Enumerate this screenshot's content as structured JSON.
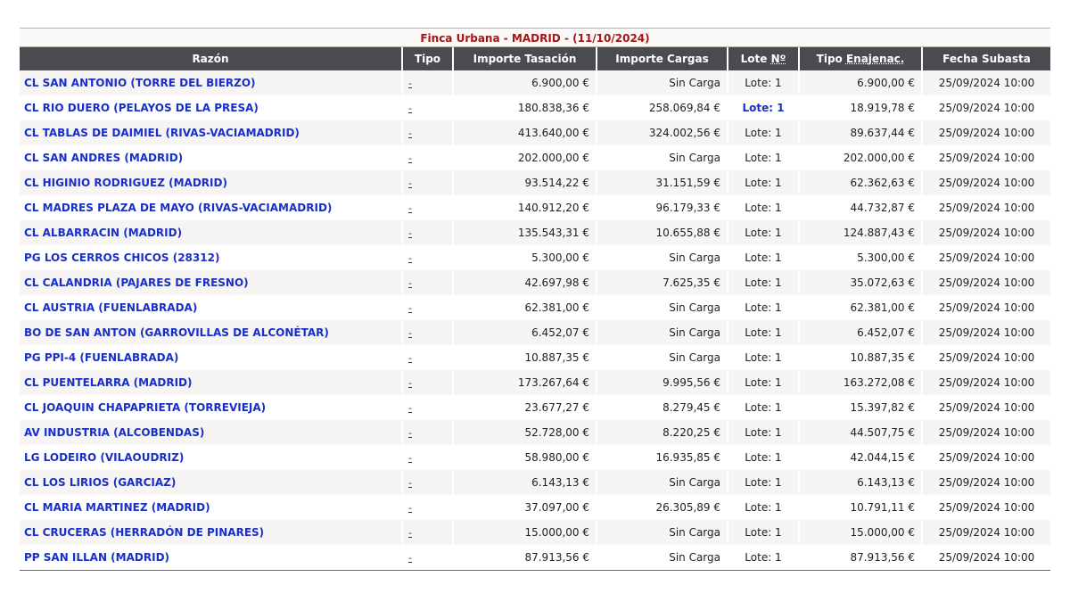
{
  "caption": "Finca Urbana - MADRID - (11/10/2024)",
  "headers": {
    "razon": "Razón",
    "tipo": "Tipo",
    "importe_tasacion": "Importe Tasación",
    "importe_cargas": "Importe Cargas",
    "lote_prefix": "Lote ",
    "lote_abbr": "Nº",
    "tipo_enajenac_prefix": "Tipo ",
    "tipo_enajenac_abbr": "Enajenac.",
    "fecha_subasta": "Fecha Subasta"
  },
  "rows": [
    {
      "razon": "CL SAN ANTONIO (TORRE DEL BIERZO)",
      "tipo": "-",
      "tasacion": "6.900,00 €",
      "cargas": "Sin Carga",
      "lote": "Lote: 1",
      "enajenac": "6.900,00 €",
      "fecha": "25/09/2024 10:00"
    },
    {
      "razon": "CL RIO DUERO (PELAYOS DE LA PRESA)",
      "tipo": "-",
      "tasacion": "180.838,36 €",
      "cargas": "258.069,84 €",
      "lote": "Lote: 1",
      "enajenac": "18.919,78 €",
      "fecha": "25/09/2024 10:00"
    },
    {
      "razon": "CL TABLAS DE DAIMIEL (RIVAS-VACIAMADRID)",
      "tipo": "-",
      "tasacion": "413.640,00 €",
      "cargas": "324.002,56 €",
      "lote": "Lote: 1",
      "enajenac": "89.637,44 €",
      "fecha": "25/09/2024 10:00"
    },
    {
      "razon": "CL SAN ANDRES (MADRID)",
      "tipo": "-",
      "tasacion": "202.000,00 €",
      "cargas": "Sin Carga",
      "lote": "Lote: 1",
      "enajenac": "202.000,00 €",
      "fecha": "25/09/2024 10:00"
    },
    {
      "razon": "CL HIGINIO RODRIGUEZ (MADRID)",
      "tipo": "-",
      "tasacion": "93.514,22 €",
      "cargas": "31.151,59 €",
      "lote": "Lote: 1",
      "enajenac": "62.362,63 €",
      "fecha": "25/09/2024 10:00"
    },
    {
      "razon": "CL MADRES PLAZA DE MAYO (RIVAS-VACIAMADRID)",
      "tipo": "-",
      "tasacion": "140.912,20 €",
      "cargas": "96.179,33 €",
      "lote": "Lote: 1",
      "enajenac": "44.732,87 €",
      "fecha": "25/09/2024 10:00"
    },
    {
      "razon": "CL ALBARRACIN (MADRID)",
      "tipo": "-",
      "tasacion": "135.543,31 €",
      "cargas": "10.655,88 €",
      "lote": "Lote: 1",
      "enajenac": "124.887,43 €",
      "fecha": "25/09/2024 10:00"
    },
    {
      "razon": "PG LOS CERROS CHICOS (28312)",
      "tipo": "-",
      "tasacion": "5.300,00 €",
      "cargas": "Sin Carga",
      "lote": "Lote: 1",
      "enajenac": "5.300,00 €",
      "fecha": "25/09/2024 10:00"
    },
    {
      "razon": "CL CALANDRIA (PAJARES DE FRESNO)",
      "tipo": "-",
      "tasacion": "42.697,98 €",
      "cargas": "7.625,35 €",
      "lote": "Lote: 1",
      "enajenac": "35.072,63 €",
      "fecha": "25/09/2024 10:00"
    },
    {
      "razon": "CL AUSTRIA (FUENLABRADA)",
      "tipo": "-",
      "tasacion": "62.381,00 €",
      "cargas": "Sin Carga",
      "lote": "Lote: 1",
      "enajenac": "62.381,00 €",
      "fecha": "25/09/2024 10:00"
    },
    {
      "razon": "BO DE SAN ANTON (GARROVILLAS DE ALCONÉTAR)",
      "tipo": "-",
      "tasacion": "6.452,07 €",
      "cargas": "Sin Carga",
      "lote": "Lote: 1",
      "enajenac": "6.452,07 €",
      "fecha": "25/09/2024 10:00"
    },
    {
      "razon": "PG PPI-4 (FUENLABRADA)",
      "tipo": "-",
      "tasacion": "10.887,35 €",
      "cargas": "Sin Carga",
      "lote": "Lote: 1",
      "enajenac": "10.887,35 €",
      "fecha": "25/09/2024 10:00"
    },
    {
      "razon": "CL PUENTELARRA (MADRID)",
      "tipo": "-",
      "tasacion": "173.267,64 €",
      "cargas": "9.995,56 €",
      "lote": "Lote: 1",
      "enajenac": "163.272,08 €",
      "fecha": "25/09/2024 10:00"
    },
    {
      "razon": "CL JOAQUIN CHAPAPRIETA (TORREVIEJA)",
      "tipo": "-",
      "tasacion": "23.677,27 €",
      "cargas": "8.279,45 €",
      "lote": "Lote: 1",
      "enajenac": "15.397,82 €",
      "fecha": "25/09/2024 10:00"
    },
    {
      "razon": "AV INDUSTRIA (ALCOBENDAS)",
      "tipo": "-",
      "tasacion": "52.728,00 €",
      "cargas": "8.220,25 €",
      "lote": "Lote: 1",
      "enajenac": "44.507,75 €",
      "fecha": "25/09/2024 10:00"
    },
    {
      "razon": "LG LODEIRO (VILAOUDRIZ)",
      "tipo": "-",
      "tasacion": "58.980,00 €",
      "cargas": "16.935,85 €",
      "lote": "Lote: 1",
      "enajenac": "42.044,15 €",
      "fecha": "25/09/2024 10:00"
    },
    {
      "razon": "CL LOS LIRIOS (GARCIAZ)",
      "tipo": "-",
      "tasacion": "6.143,13 €",
      "cargas": "Sin Carga",
      "lote": "Lote: 1",
      "enajenac": "6.143,13 €",
      "fecha": "25/09/2024 10:00"
    },
    {
      "razon": "CL MARIA MARTINEZ (MADRID)",
      "tipo": "-",
      "tasacion": "37.097,00 €",
      "cargas": "26.305,89 €",
      "lote": "Lote: 1",
      "enajenac": "10.791,11 €",
      "fecha": "25/09/2024 10:00"
    },
    {
      "razon": "CL CRUCERAS (HERRADÓN DE PINARES)",
      "tipo": "-",
      "tasacion": "15.000,00 €",
      "cargas": "Sin Carga",
      "lote": "Lote: 1",
      "enajenac": "15.000,00 €",
      "fecha": "25/09/2024 10:00"
    },
    {
      "razon": "PP SAN ILLAN (MADRID)",
      "tipo": "-",
      "tasacion": "87.913,56 €",
      "cargas": "Sin Carga",
      "lote": "Lote: 1",
      "enajenac": "87.913,56 €",
      "fecha": "25/09/2024 10:00"
    }
  ],
  "lote_link_row_index": 1,
  "colors": {
    "caption_text": "#a11616",
    "header_bg": "#4a4b4f",
    "link": "#1a2fc4",
    "row_alt": "#f7f5f3"
  }
}
